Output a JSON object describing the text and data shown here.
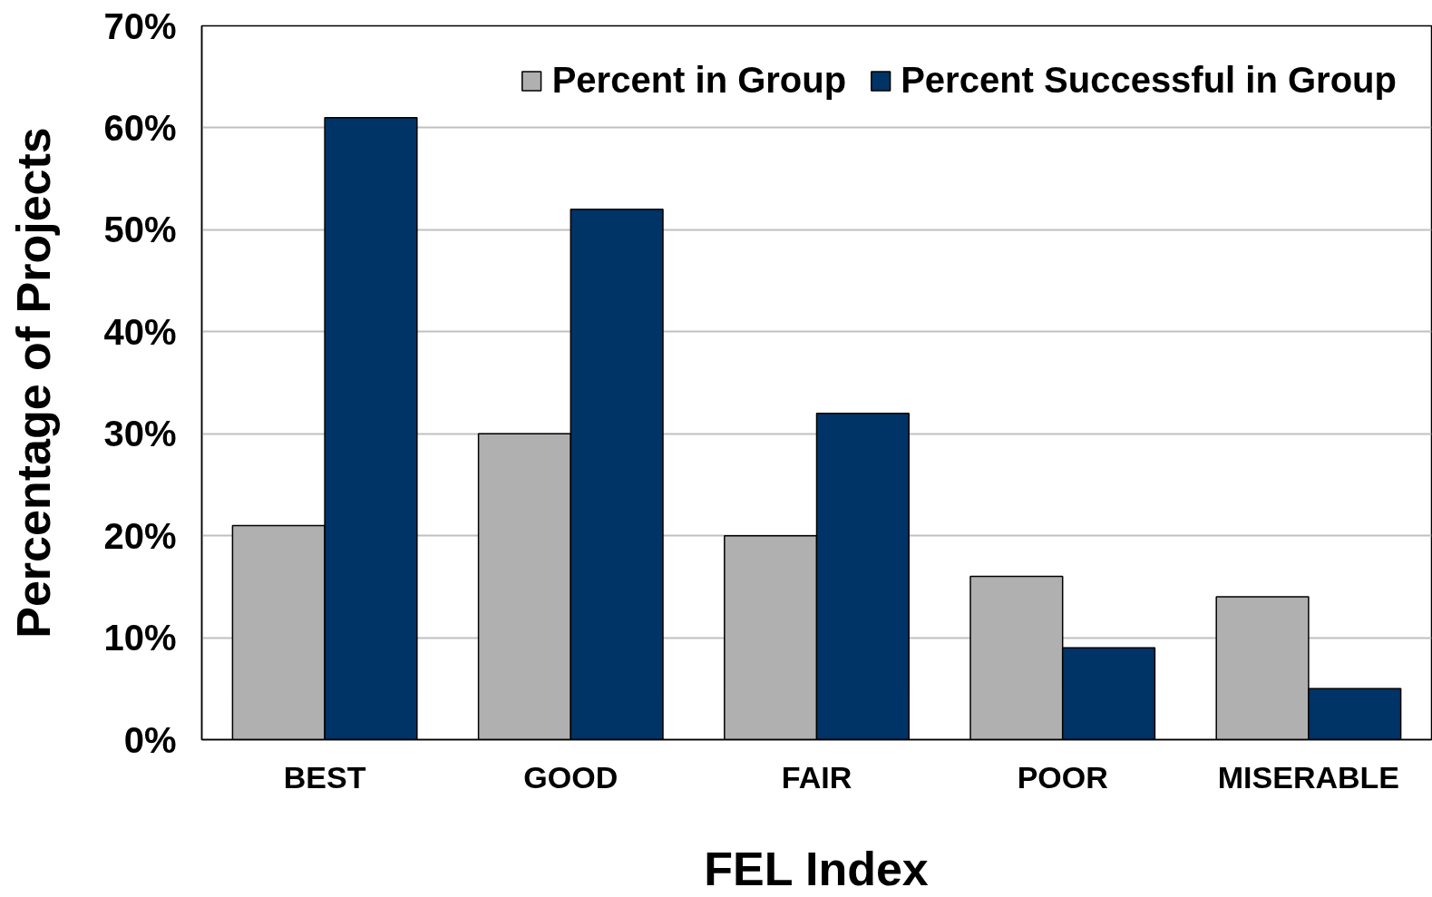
{
  "chart_data": {
    "type": "bar",
    "xlabel": "FEL Index",
    "ylabel": "Percentage of Projects",
    "categories": [
      "BEST",
      "GOOD",
      "FAIR",
      "POOR",
      "MISERABLE"
    ],
    "series": [
      {
        "name": "Percent in Group",
        "color": "#b0b0b0",
        "values": [
          21,
          30,
          20,
          16,
          14
        ]
      },
      {
        "name": "Percent Successful in Group",
        "color": "#003366",
        "values": [
          61,
          52,
          32,
          9,
          5
        ]
      }
    ],
    "ylim": [
      0,
      70
    ],
    "yticks": [
      {
        "value": 0,
        "label": "0%"
      },
      {
        "value": 10,
        "label": "10%"
      },
      {
        "value": 20,
        "label": "20%"
      },
      {
        "value": 30,
        "label": "30%"
      },
      {
        "value": 40,
        "label": "40%"
      },
      {
        "value": 50,
        "label": "50%"
      },
      {
        "value": 60,
        "label": "60%"
      },
      {
        "value": 70,
        "label": "70%"
      }
    ],
    "grid": "y",
    "legend": "top right"
  }
}
